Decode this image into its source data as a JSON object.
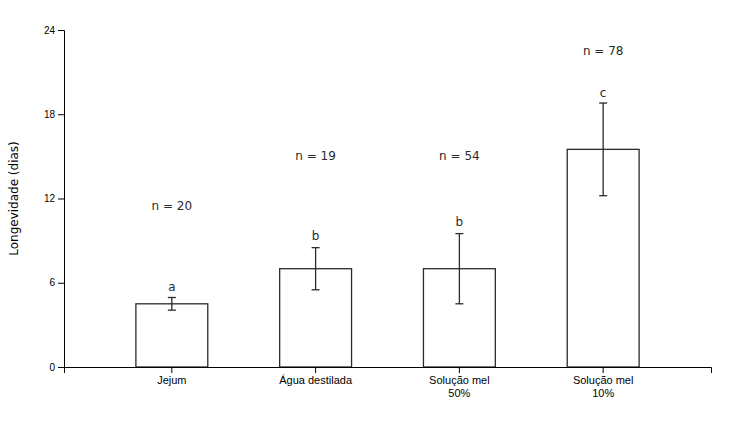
{
  "chart_data": {
    "type": "bar",
    "categories": [
      "Jejum",
      "Água destilada",
      "Solução mel\n50%",
      "Solução mel\n10%"
    ],
    "values": [
      4.5,
      7.0,
      7.0,
      15.5
    ],
    "errors": [
      0.45,
      1.5,
      2.5,
      3.3
    ],
    "color": "#ffffff",
    "y_label": "Longevidade (dias)",
    "ylim": [
      0,
      24
    ],
    "yticks": [
      0,
      6,
      12,
      18,
      24
    ],
    "grid": false,
    "n_labels": [
      "n = 20",
      "n = 19",
      "n = 54",
      "n = 78"
    ],
    "n_label_y": [
      11.0,
      14.5,
      14.5,
      22.0
    ],
    "sig_labels": [
      "a",
      "b",
      "b",
      "c"
    ],
    "sig_label_y": [
      5.2,
      8.8,
      9.8,
      19.0
    ]
  }
}
